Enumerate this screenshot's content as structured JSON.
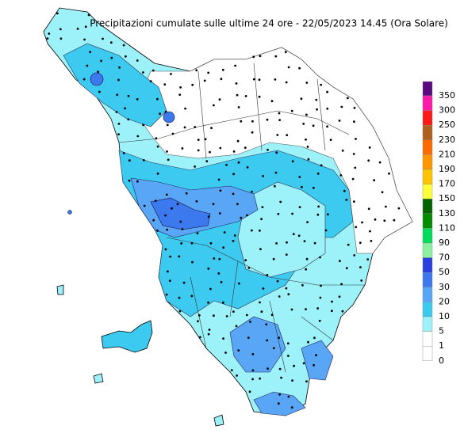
{
  "title": "Precipitazioni cumulate sulle ultime 24 ore - 22/05/2023 14.45 (Ora Solare)",
  "legend": {
    "top_color": "#5c0a84",
    "items": [
      {
        "value": 350,
        "color": "#a23fd0"
      },
      {
        "value": 300,
        "color": "#ff1aa8"
      },
      {
        "value": 250,
        "color": "#ff1a1a"
      },
      {
        "value": 230,
        "color": "#b0601e"
      },
      {
        "value": 210,
        "color": "#ff6a00"
      },
      {
        "value": 190,
        "color": "#ff9600"
      },
      {
        "value": 170,
        "color": "#ffc400"
      },
      {
        "value": 150,
        "color": "#ffff3a"
      },
      {
        "value": 130,
        "color": "#006400"
      },
      {
        "value": 110,
        "color": "#008c00"
      },
      {
        "value": 90,
        "color": "#00dc5a"
      },
      {
        "value": 70,
        "color": "#8cf0a0"
      },
      {
        "value": 50,
        "color": "#2840e0"
      },
      {
        "value": 30,
        "color": "#3c78ee"
      },
      {
        "value": 20,
        "color": "#5aa6f6"
      },
      {
        "value": 10,
        "color": "#3ccaf0"
      },
      {
        "value": 5,
        "color": "#9cf2f8"
      },
      {
        "value": 1,
        "color": "#ffffff"
      },
      {
        "value": 0,
        "color": "#ffffff"
      }
    ]
  }
}
